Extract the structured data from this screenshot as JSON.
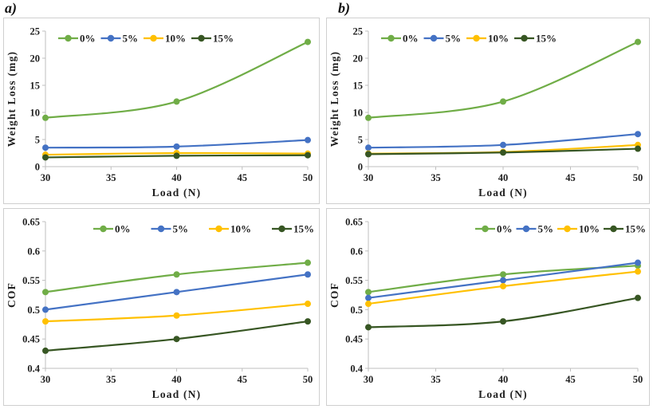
{
  "labels": {
    "a": "a)",
    "b": "b)"
  },
  "colors": {
    "series_0pct": "#70AD47",
    "series_5pct": "#4472C4",
    "series_10pct": "#FFC000",
    "series_15pct": "#375623",
    "axis": "#BFBFBF",
    "text": "#1F1F1F",
    "panel_border": "#CFCFCF"
  },
  "chart_data": [
    {
      "id": "weight-loss-a",
      "type": "line",
      "xlabel": "Load (N)",
      "ylabel": "Weight Loss (mg)",
      "x": [
        30,
        40,
        50
      ],
      "xlim": [
        30,
        50
      ],
      "xticks": [
        30,
        35,
        40,
        45,
        50
      ],
      "xtick_labels": [
        "30",
        "35",
        "40",
        "45",
        "50"
      ],
      "ylim": [
        0,
        25
      ],
      "yticks": [
        0,
        5,
        10,
        15,
        20,
        25
      ],
      "ytick_labels": [
        "0",
        "5",
        "10",
        "15",
        "20",
        "25"
      ],
      "grid": false,
      "legend_position": "top-left",
      "series": [
        {
          "name": "0%",
          "color": "#70AD47",
          "values": [
            9,
            12,
            23
          ]
        },
        {
          "name": "5%",
          "color": "#4472C4",
          "values": [
            3.5,
            3.7,
            4.9
          ]
        },
        {
          "name": "10%",
          "color": "#FFC000",
          "values": [
            2.2,
            2.5,
            2.4
          ]
        },
        {
          "name": "15%",
          "color": "#375623",
          "values": [
            1.7,
            2.0,
            2.1
          ]
        }
      ]
    },
    {
      "id": "weight-loss-b",
      "type": "line",
      "xlabel": "Load (N)",
      "ylabel": "Weight Loss (mg)",
      "x": [
        30,
        40,
        50
      ],
      "xlim": [
        30,
        50
      ],
      "xticks": [
        30,
        35,
        40,
        45,
        50
      ],
      "xtick_labels": [
        "30",
        "35",
        "40",
        "45",
        "50"
      ],
      "ylim": [
        0,
        25
      ],
      "yticks": [
        0,
        5,
        10,
        15,
        20,
        25
      ],
      "ytick_labels": [
        "0",
        "5",
        "10",
        "15",
        "20",
        "25"
      ],
      "grid": false,
      "legend_position": "top-left",
      "series": [
        {
          "name": "0%",
          "color": "#70AD47",
          "values": [
            9,
            12,
            23
          ]
        },
        {
          "name": "5%",
          "color": "#4472C4",
          "values": [
            3.5,
            4.0,
            6.0
          ]
        },
        {
          "name": "10%",
          "color": "#FFC000",
          "values": [
            2.4,
            2.7,
            4.0
          ]
        },
        {
          "name": "15%",
          "color": "#375623",
          "values": [
            2.3,
            2.6,
            3.3
          ]
        }
      ]
    },
    {
      "id": "cof-a",
      "type": "line",
      "xlabel": "Load (N)",
      "ylabel": "COF",
      "x": [
        30,
        40,
        50
      ],
      "xlim": [
        30,
        50
      ],
      "xticks": [
        30,
        35,
        40,
        45,
        50
      ],
      "xtick_labels": [
        "30",
        "35",
        "40",
        "45",
        "50"
      ],
      "ylim": [
        0.4,
        0.65
      ],
      "yticks": [
        0.4,
        0.45,
        0.5,
        0.55,
        0.6,
        0.65
      ],
      "ytick_labels": [
        "0.4",
        "0.45",
        "0.5",
        "0.55",
        "0.6",
        "0.65"
      ],
      "grid": false,
      "legend_position": "top-spread",
      "series": [
        {
          "name": "0%",
          "color": "#70AD47",
          "values": [
            0.53,
            0.56,
            0.58
          ]
        },
        {
          "name": "5%",
          "color": "#4472C4",
          "values": [
            0.5,
            0.53,
            0.56
          ]
        },
        {
          "name": "10%",
          "color": "#FFC000",
          "values": [
            0.48,
            0.49,
            0.51
          ]
        },
        {
          "name": "15%",
          "color": "#375623",
          "values": [
            0.43,
            0.45,
            0.48
          ]
        }
      ]
    },
    {
      "id": "cof-b",
      "type": "line",
      "xlabel": "Load (N)",
      "ylabel": "COF",
      "x": [
        30,
        40,
        50
      ],
      "xlim": [
        30,
        50
      ],
      "xticks": [
        30,
        35,
        40,
        45,
        50
      ],
      "xtick_labels": [
        "30",
        "35",
        "40",
        "45",
        "50"
      ],
      "ylim": [
        0.4,
        0.65
      ],
      "yticks": [
        0.4,
        0.45,
        0.5,
        0.55,
        0.6,
        0.65
      ],
      "ytick_labels": [
        "0.4",
        "0.45",
        "0.5",
        "0.55",
        "0.6",
        "0.65"
      ],
      "grid": false,
      "legend_position": "top-right",
      "series": [
        {
          "name": "0%",
          "color": "#70AD47",
          "values": [
            0.53,
            0.56,
            0.575
          ]
        },
        {
          "name": "5%",
          "color": "#4472C4",
          "values": [
            0.52,
            0.55,
            0.58
          ]
        },
        {
          "name": "10%",
          "color": "#FFC000",
          "values": [
            0.51,
            0.54,
            0.565
          ]
        },
        {
          "name": "15%",
          "color": "#375623",
          "values": [
            0.47,
            0.48,
            0.52
          ]
        }
      ]
    }
  ]
}
